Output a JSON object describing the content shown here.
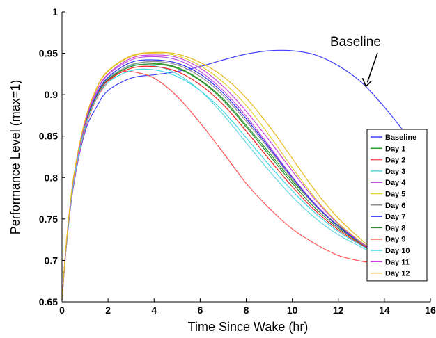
{
  "chart_data": {
    "type": "line",
    "xlabel": "Time Since Wake (hr)",
    "ylabel": "Performance Level (max=1)",
    "xlim": [
      0,
      16
    ],
    "ylim": [
      0.65,
      1
    ],
    "xticks": [
      0,
      2,
      4,
      6,
      8,
      10,
      12,
      14,
      16
    ],
    "yticks": [
      0.65,
      0.7,
      0.75,
      0.8,
      0.85,
      0.9,
      0.95,
      1
    ],
    "ytick_labels": [
      "0.65",
      "0.7",
      "0.75",
      "0.8",
      "0.85",
      "0.9",
      "0.95",
      "1"
    ],
    "grid": false,
    "legend_position": "right",
    "annotation": {
      "text": "Baseline",
      "points_to": {
        "x": 13.2,
        "y": 0.91
      }
    },
    "series": [
      {
        "name": "Baseline",
        "color": "#4040ff",
        "x": [
          0,
          0.2,
          0.5,
          1,
          1.5,
          2,
          3,
          4,
          5,
          6,
          7,
          8,
          9,
          10,
          11,
          12,
          13,
          14,
          15,
          15.5
        ],
        "y": [
          0.652,
          0.72,
          0.79,
          0.855,
          0.885,
          0.905,
          0.92,
          0.924,
          0.928,
          0.934,
          0.942,
          0.949,
          0.953,
          0.953,
          0.948,
          0.935,
          0.915,
          0.885,
          0.85,
          0.83
        ]
      },
      {
        "name": "Day 1",
        "color": "#2ca02c",
        "x": [
          0,
          0.2,
          0.5,
          1,
          1.5,
          2,
          3,
          4,
          5,
          6,
          7,
          8,
          9,
          10,
          11,
          12,
          13,
          13.3
        ],
        "y": [
          0.652,
          0.722,
          0.795,
          0.862,
          0.898,
          0.918,
          0.936,
          0.938,
          0.933,
          0.918,
          0.895,
          0.863,
          0.83,
          0.796,
          0.767,
          0.742,
          0.722,
          0.716
        ]
      },
      {
        "name": "Day 2",
        "color": "#ff5555",
        "x": [
          0,
          0.2,
          0.5,
          1,
          1.5,
          2,
          2.5,
          3,
          4,
          5,
          6,
          7,
          8,
          9,
          10,
          11,
          12,
          13,
          13.3
        ],
        "y": [
          0.652,
          0.72,
          0.792,
          0.858,
          0.895,
          0.915,
          0.926,
          0.928,
          0.92,
          0.898,
          0.866,
          0.83,
          0.793,
          0.763,
          0.738,
          0.72,
          0.706,
          0.699,
          0.698
        ]
      },
      {
        "name": "Day 3",
        "color": "#5fd3e0",
        "x": [
          0,
          0.2,
          0.5,
          1,
          1.5,
          2,
          3,
          4,
          5,
          6,
          7,
          8,
          9,
          10,
          11,
          12,
          13,
          13.3
        ],
        "y": [
          0.652,
          0.722,
          0.795,
          0.862,
          0.9,
          0.92,
          0.935,
          0.935,
          0.925,
          0.905,
          0.876,
          0.842,
          0.808,
          0.777,
          0.751,
          0.731,
          0.716,
          0.712
        ]
      },
      {
        "name": "Day 4",
        "color": "#c050e0",
        "x": [
          0,
          0.2,
          0.5,
          1,
          1.5,
          2,
          3,
          4,
          5,
          6,
          7,
          8,
          9,
          10,
          11,
          12,
          13,
          13.3
        ],
        "y": [
          0.652,
          0.723,
          0.797,
          0.865,
          0.903,
          0.924,
          0.942,
          0.946,
          0.942,
          0.928,
          0.905,
          0.874,
          0.838,
          0.801,
          0.768,
          0.741,
          0.72,
          0.715
        ]
      },
      {
        "name": "Day 5",
        "color": "#e0d030",
        "x": [
          0,
          0.2,
          0.5,
          1,
          1.5,
          2,
          3,
          4,
          5,
          6,
          7,
          8,
          9,
          10,
          11,
          12,
          13,
          13.3
        ],
        "y": [
          0.652,
          0.725,
          0.8,
          0.868,
          0.907,
          0.928,
          0.946,
          0.95,
          0.947,
          0.935,
          0.915,
          0.887,
          0.851,
          0.812,
          0.775,
          0.745,
          0.722,
          0.716
        ]
      },
      {
        "name": "Day 6",
        "color": "#909090",
        "x": [
          0,
          0.2,
          0.5,
          1,
          1.5,
          2,
          3,
          4,
          5,
          6,
          7,
          8,
          9,
          10,
          11,
          12,
          13,
          13.3
        ],
        "y": [
          0.652,
          0.722,
          0.795,
          0.862,
          0.899,
          0.919,
          0.936,
          0.94,
          0.936,
          0.922,
          0.899,
          0.868,
          0.834,
          0.798,
          0.766,
          0.741,
          0.721,
          0.716
        ]
      },
      {
        "name": "Day 7",
        "color": "#3030ee",
        "x": [
          0,
          0.2,
          0.5,
          1,
          1.5,
          2,
          3,
          4,
          5,
          6,
          7,
          8,
          9,
          10,
          11,
          12,
          13,
          13.3
        ],
        "y": [
          0.652,
          0.722,
          0.796,
          0.863,
          0.9,
          0.921,
          0.939,
          0.942,
          0.938,
          0.925,
          0.902,
          0.871,
          0.836,
          0.8,
          0.767,
          0.741,
          0.721,
          0.716
        ]
      },
      {
        "name": "Day 8",
        "color": "#2e8b2e",
        "x": [
          0,
          0.2,
          0.5,
          1,
          1.5,
          2,
          3,
          4,
          5,
          6,
          7,
          8,
          9,
          10,
          11,
          12,
          13,
          13.3
        ],
        "y": [
          0.652,
          0.722,
          0.795,
          0.862,
          0.898,
          0.918,
          0.934,
          0.937,
          0.932,
          0.917,
          0.893,
          0.861,
          0.827,
          0.793,
          0.763,
          0.739,
          0.72,
          0.715
        ]
      },
      {
        "name": "Day 9",
        "color": "#ee2222",
        "x": [
          0,
          0.2,
          0.5,
          1,
          1.5,
          2,
          3,
          4,
          5,
          6,
          7,
          8,
          9,
          10,
          11,
          12,
          13,
          13.3
        ],
        "y": [
          0.652,
          0.722,
          0.795,
          0.861,
          0.897,
          0.917,
          0.932,
          0.934,
          0.928,
          0.912,
          0.888,
          0.856,
          0.822,
          0.789,
          0.76,
          0.737,
          0.719,
          0.715
        ]
      },
      {
        "name": "Day 10",
        "color": "#40d8e8",
        "x": [
          0,
          0.2,
          0.5,
          1,
          1.5,
          2,
          3,
          4,
          5,
          6,
          7,
          8,
          9,
          10,
          11,
          12,
          13,
          13.3
        ],
        "y": [
          0.652,
          0.721,
          0.794,
          0.86,
          0.896,
          0.915,
          0.929,
          0.93,
          0.922,
          0.905,
          0.88,
          0.848,
          0.815,
          0.784,
          0.757,
          0.735,
          0.718,
          0.714
        ]
      },
      {
        "name": "Day 11",
        "color": "#cc44dd",
        "x": [
          0,
          0.2,
          0.5,
          1,
          1.5,
          2,
          3,
          4,
          5,
          6,
          7,
          8,
          9,
          10,
          11,
          12,
          13,
          13.3
        ],
        "y": [
          0.652,
          0.723,
          0.798,
          0.866,
          0.904,
          0.925,
          0.944,
          0.948,
          0.945,
          0.932,
          0.91,
          0.88,
          0.845,
          0.808,
          0.773,
          0.744,
          0.721,
          0.716
        ]
      },
      {
        "name": "Day 12",
        "color": "#e8b820",
        "x": [
          0,
          0.2,
          0.5,
          1,
          1.5,
          2,
          3,
          4,
          5,
          6,
          7,
          8,
          9,
          10,
          11,
          12,
          13,
          13.3
        ],
        "y": [
          0.652,
          0.725,
          0.8,
          0.869,
          0.908,
          0.929,
          0.947,
          0.951,
          0.949,
          0.939,
          0.922,
          0.896,
          0.862,
          0.823,
          0.784,
          0.751,
          0.725,
          0.718
        ]
      }
    ]
  }
}
